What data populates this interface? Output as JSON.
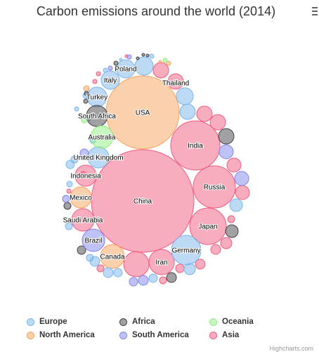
{
  "title": "Carbon emissions around the world (2014)",
  "menu_icon": "hamburger-menu-icon",
  "credits": "Highcharts.com",
  "colors": {
    "Europe": "#7cb5ec",
    "North America": "#f7a35c",
    "Africa": "#434348",
    "South America": "#8085e9",
    "Oceania": "#90ed7d",
    "Asia": "#f15c80"
  },
  "legend": {
    "placement": "bottom",
    "items": [
      "Europe",
      "Africa",
      "Oceania",
      "North America",
      "South America",
      "Asia"
    ]
  },
  "chart_data": {
    "type": "packed-bubble",
    "title": "Carbon emissions around the world (2014)",
    "value_description": "bubble area proportional to emissions (relative, estimated)",
    "series": [
      {
        "name": "Asia",
        "points": [
          {
            "name": "China",
            "value": 10500
          },
          {
            "name": "India",
            "value": 2300
          },
          {
            "name": "Russia",
            "value": 1800
          },
          {
            "name": "Japan",
            "value": 1350
          },
          {
            "name": "Iran",
            "value": 620
          },
          {
            "name": "Indonesia",
            "value": 450
          },
          {
            "name": "Saudi Arabia",
            "value": 500
          },
          {
            "name": "Thailand",
            "value": 250
          },
          {
            "name": "",
            "value": 750
          },
          {
            "name": "",
            "value": 250
          },
          {
            "name": "",
            "value": 240
          },
          {
            "name": "",
            "value": 225
          },
          {
            "name": "",
            "value": 210
          },
          {
            "name": "",
            "value": 200
          },
          {
            "name": "",
            "value": 140
          },
          {
            "name": "",
            "value": 100
          },
          {
            "name": "",
            "value": 95
          },
          {
            "name": "",
            "value": 60
          },
          {
            "name": "",
            "value": 55
          },
          {
            "name": "",
            "value": 50
          },
          {
            "name": "",
            "value": 45
          },
          {
            "name": "",
            "value": 35
          },
          {
            "name": "",
            "value": 20
          },
          {
            "name": "",
            "value": 18
          },
          {
            "name": "",
            "value": 12
          },
          {
            "name": "",
            "value": 8
          }
        ]
      },
      {
        "name": "North America",
        "points": [
          {
            "name": "USA",
            "value": 5300
          },
          {
            "name": "Canada",
            "value": 560
          },
          {
            "name": "Mexico",
            "value": 460
          },
          {
            "name": "",
            "value": 30
          },
          {
            "name": "",
            "value": 10
          },
          {
            "name": "",
            "value": 8
          }
        ]
      },
      {
        "name": "Europe",
        "points": [
          {
            "name": "Germany",
            "value": 780
          },
          {
            "name": "United Kingdom",
            "value": 420
          },
          {
            "name": "Italy",
            "value": 330
          },
          {
            "name": "Poland",
            "value": 300
          },
          {
            "name": "Turkey",
            "value": 350
          },
          {
            "name": "",
            "value": 270
          },
          {
            "name": "",
            "value": 240
          },
          {
            "name": "",
            "value": 230
          },
          {
            "name": "",
            "value": 135
          },
          {
            "name": "",
            "value": 90
          },
          {
            "name": "",
            "value": 80
          },
          {
            "name": "",
            "value": 75
          },
          {
            "name": "",
            "value": 70
          },
          {
            "name": "",
            "value": 60
          },
          {
            "name": "",
            "value": 50
          },
          {
            "name": "",
            "value": 50
          },
          {
            "name": "",
            "value": 45
          },
          {
            "name": "",
            "value": 45
          },
          {
            "name": "",
            "value": 40
          },
          {
            "name": "",
            "value": 40
          },
          {
            "name": "",
            "value": 35
          },
          {
            "name": "",
            "value": 30
          },
          {
            "name": "",
            "value": 25
          },
          {
            "name": "",
            "value": 20
          },
          {
            "name": "",
            "value": 15
          },
          {
            "name": "",
            "value": 10
          }
        ]
      },
      {
        "name": "Africa",
        "points": [
          {
            "name": "South Africa",
            "value": 430
          },
          {
            "name": "",
            "value": 270
          },
          {
            "name": "",
            "value": 175
          },
          {
            "name": "",
            "value": 70
          },
          {
            "name": "",
            "value": 60
          },
          {
            "name": "",
            "value": 50
          },
          {
            "name": "",
            "value": 15
          },
          {
            "name": "",
            "value": 10
          },
          {
            "name": "",
            "value": 10
          },
          {
            "name": "",
            "value": 8
          },
          {
            "name": "",
            "value": 8
          },
          {
            "name": "",
            "value": 6
          }
        ]
      },
      {
        "name": "South America",
        "points": [
          {
            "name": "Brazil",
            "value": 510
          },
          {
            "name": "",
            "value": 220
          },
          {
            "name": "",
            "value": 205
          },
          {
            "name": "",
            "value": 90
          },
          {
            "name": "",
            "value": 65
          },
          {
            "name": "",
            "value": 60
          },
          {
            "name": "",
            "value": 50
          },
          {
            "name": "",
            "value": 15
          },
          {
            "name": "",
            "value": 12
          }
        ]
      },
      {
        "name": "Oceania",
        "points": [
          {
            "name": "Australia",
            "value": 460
          },
          {
            "name": "",
            "value": 35
          },
          {
            "name": "",
            "value": 15
          }
        ]
      }
    ]
  }
}
